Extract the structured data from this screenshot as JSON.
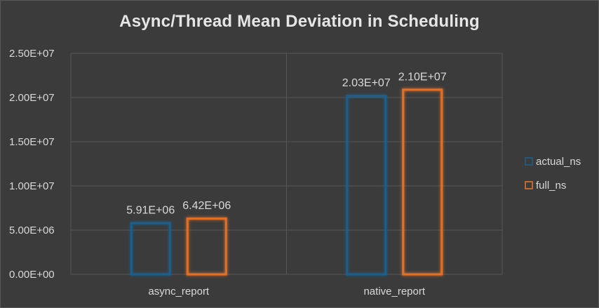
{
  "chart_data": {
    "type": "bar",
    "title": "Async/Thread Mean Deviation in Scheduling",
    "categories": [
      "async_report",
      "native_report"
    ],
    "series": [
      {
        "name": "actual_ns",
        "values": [
          5910000,
          20300000
        ],
        "labels": [
          "5.91E+06",
          "2.03E+07"
        ],
        "color": "#1f5f8b"
      },
      {
        "name": "full_ns",
        "values": [
          6420000,
          21000000
        ],
        "labels": [
          "6.42E+06",
          "2.10E+07"
        ],
        "color": "#e0712b"
      }
    ],
    "ylim": [
      0,
      25000000
    ],
    "yticks": [
      {
        "value": 0,
        "label": "0.00E+00"
      },
      {
        "value": 5000000,
        "label": "5.00E+06"
      },
      {
        "value": 10000000,
        "label": "1.00E+07"
      },
      {
        "value": 15000000,
        "label": "1.50E+07"
      },
      {
        "value": 20000000,
        "label": "2.00E+07"
      },
      {
        "value": 25000000,
        "label": "2.50E+07"
      }
    ],
    "grid": true,
    "legend": "right"
  },
  "colors": {
    "background": "#3b3b3b",
    "gridline": "#575757",
    "text": "#d9d9d9"
  }
}
